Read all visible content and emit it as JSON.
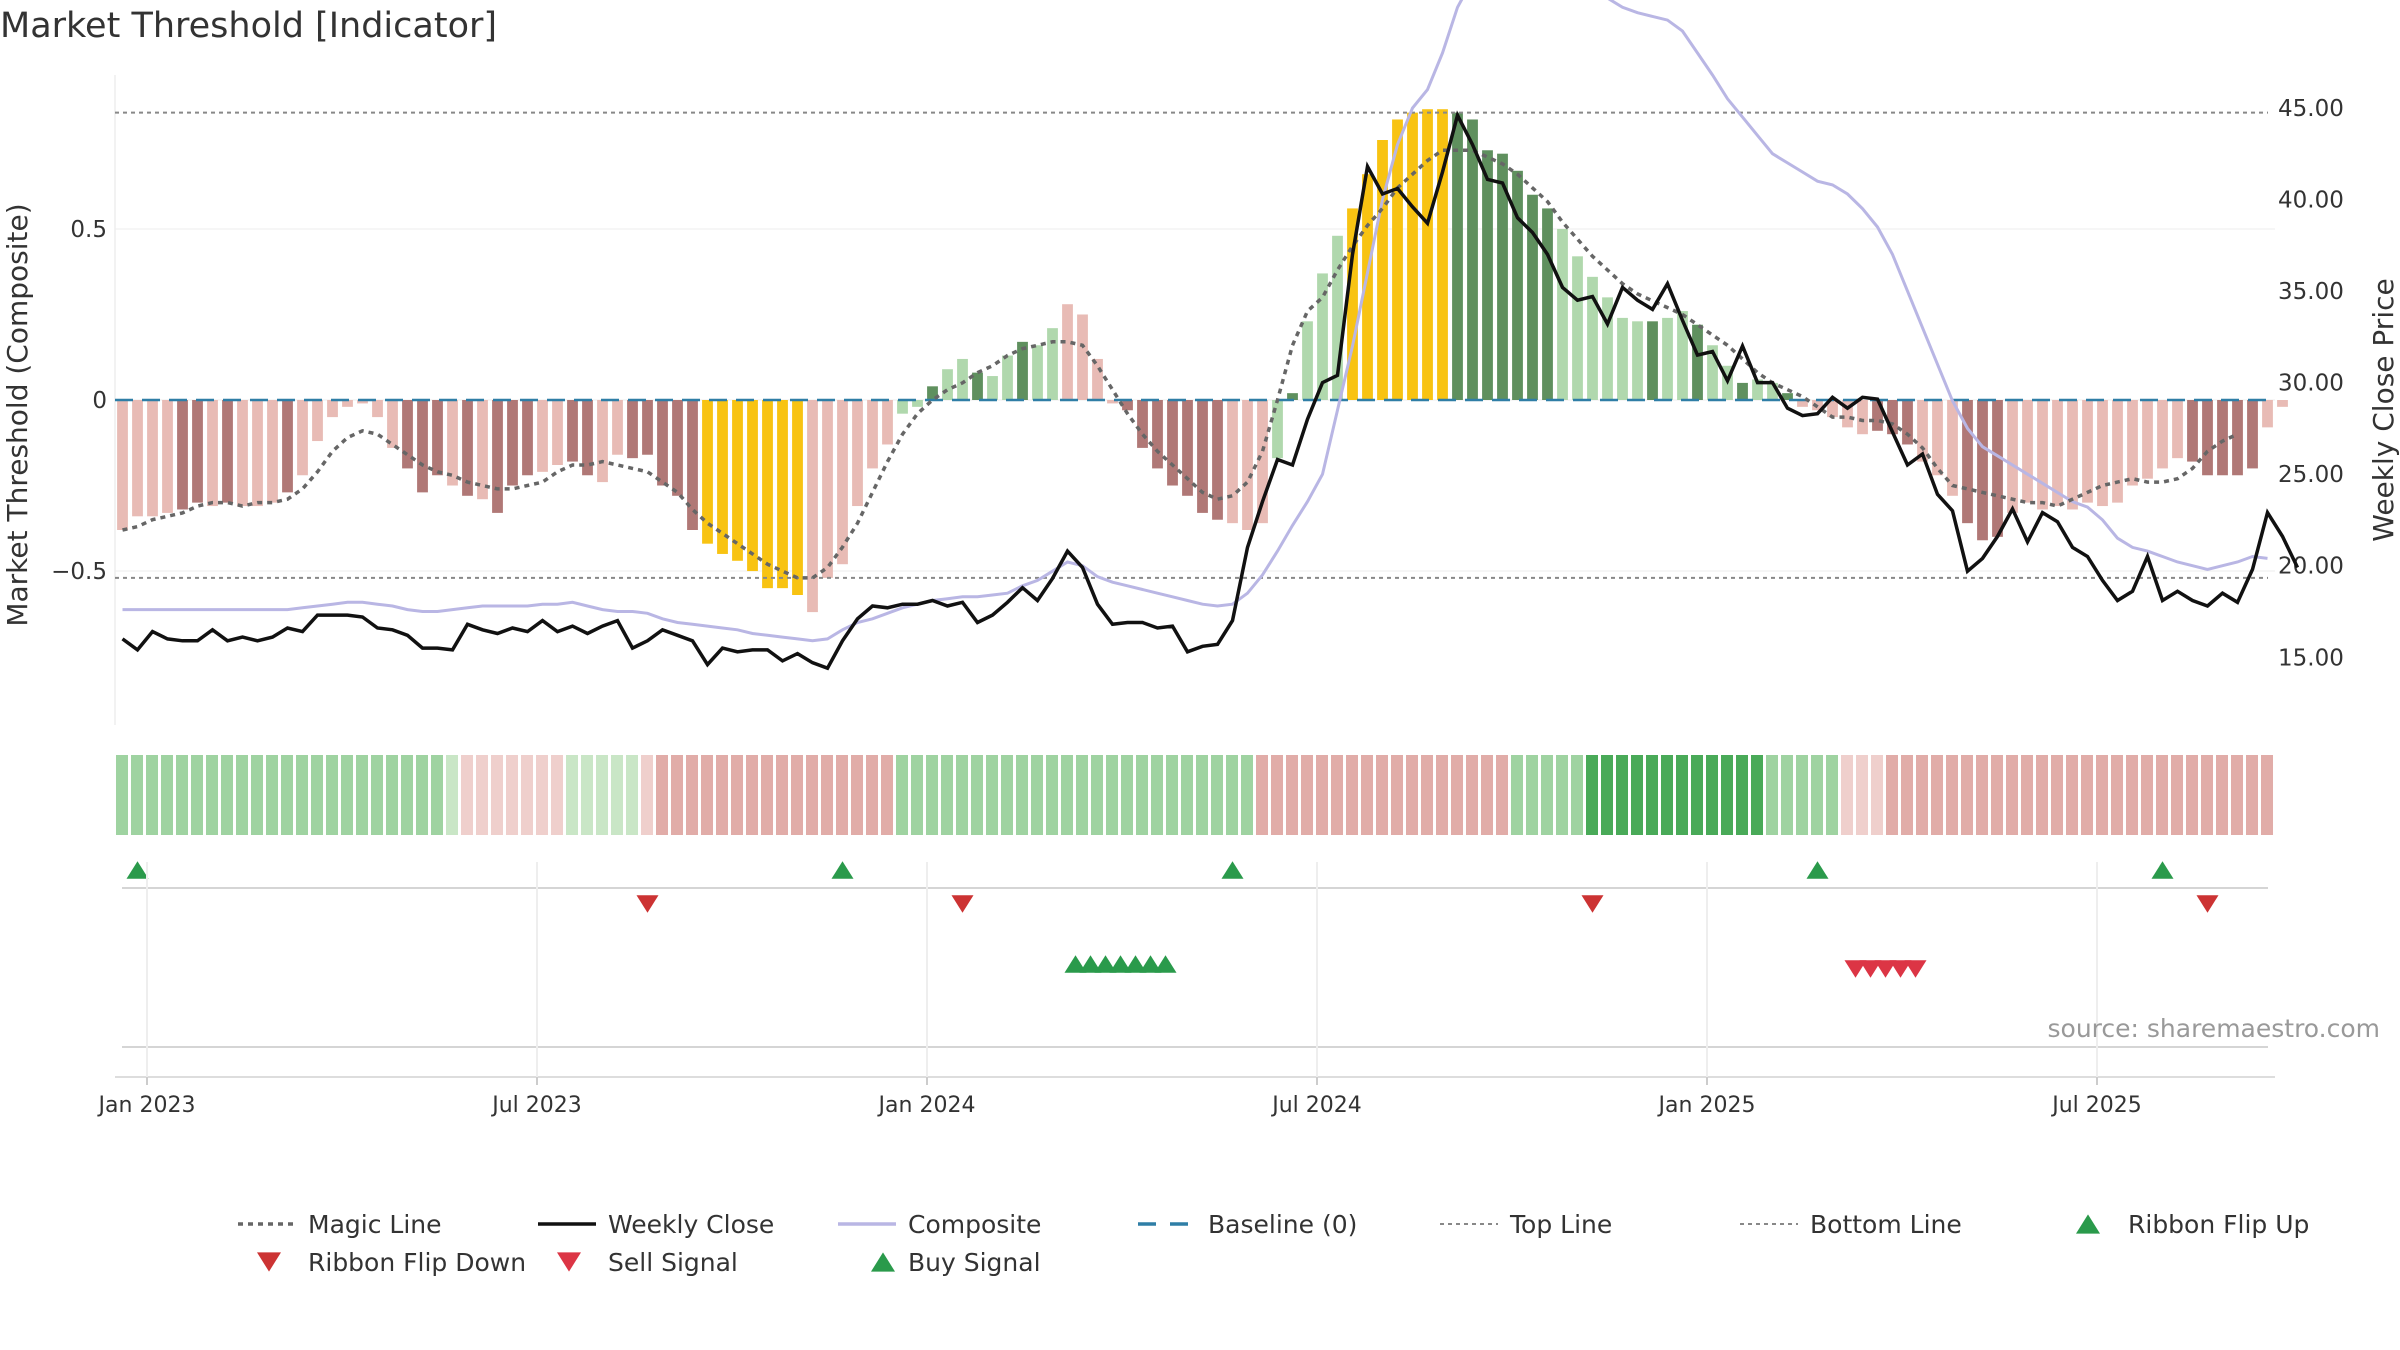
{
  "chart_data": {
    "type": "bar",
    "title": "Market Threshold [Indicator]",
    "ylabel": "Market Threshold (Composite)",
    "y2label": "Weekly Close Price",
    "ylim": [
      -0.95,
      0.95
    ],
    "y2lim": [
      11.3,
      46.8
    ],
    "yticks": [
      {
        "v": 0.5,
        "label": "0.5"
      },
      {
        "v": 0,
        "label": "0"
      },
      {
        "v": -0.5,
        "label": "−0.5"
      }
    ],
    "y2ticks": [
      "45.00",
      "40.00",
      "35.00",
      "30.00",
      "25.00",
      "20.00",
      "15.00"
    ],
    "xticks": [
      {
        "i": 2,
        "label": "Jan 2023"
      },
      {
        "i": 28,
        "label": "Jul 2023"
      },
      {
        "i": 54,
        "label": "Jan 2024"
      },
      {
        "i": 80,
        "label": "Jul 2024"
      },
      {
        "i": 106,
        "label": "Jan 2025"
      },
      {
        "i": 132,
        "label": "Jul 2025"
      }
    ],
    "weeks": 144,
    "composite_bars": [
      -0.38,
      -0.34,
      -0.34,
      -0.33,
      -0.32,
      -0.3,
      -0.31,
      -0.3,
      -0.31,
      -0.31,
      -0.3,
      -0.27,
      -0.22,
      -0.12,
      -0.05,
      -0.02,
      -0.01,
      -0.05,
      -0.14,
      -0.2,
      -0.27,
      -0.22,
      -0.25,
      -0.28,
      -0.29,
      -0.33,
      -0.25,
      -0.22,
      -0.21,
      -0.19,
      -0.18,
      -0.22,
      -0.24,
      -0.16,
      -0.17,
      -0.16,
      -0.25,
      -0.28,
      -0.38,
      -0.42,
      -0.45,
      -0.47,
      -0.5,
      -0.55,
      -0.55,
      -0.57,
      -0.62,
      -0.52,
      -0.48,
      -0.31,
      -0.2,
      -0.13,
      -0.04,
      -0.02,
      0.04,
      0.09,
      0.12,
      0.08,
      0.07,
      0.13,
      0.17,
      0.16,
      0.21,
      0.28,
      0.25,
      0.12,
      -0.01,
      -0.03,
      -0.14,
      -0.2,
      -0.25,
      -0.28,
      -0.33,
      -0.35,
      -0.36,
      -0.38,
      -0.36,
      -0.17,
      0.02,
      0.23,
      0.37,
      0.48,
      0.56,
      0.66,
      0.76,
      0.82,
      0.84,
      0.85,
      0.85,
      0.84,
      0.82,
      0.73,
      0.72,
      0.67,
      0.6,
      0.56,
      0.5,
      0.42,
      0.36,
      0.3,
      0.24,
      0.23,
      0.23,
      0.24,
      0.26,
      0.22,
      0.16,
      0.1,
      0.05,
      0.06,
      0.05,
      0.02,
      -0.02,
      -0.03,
      -0.05,
      -0.08,
      -0.1,
      -0.09,
      -0.1,
      -0.13,
      -0.18,
      -0.22,
      -0.28,
      -0.36,
      -0.41,
      -0.4,
      -0.33,
      -0.3,
      -0.32,
      -0.31,
      -0.32,
      -0.3,
      -0.31,
      -0.3,
      -0.25,
      -0.23,
      -0.2,
      -0.17,
      -0.18,
      -0.22,
      -0.22,
      -0.22,
      -0.2,
      -0.08,
      -0.02
    ],
    "bar_states": "ppppddpdpppdpppppppdddpdpdddppddppdddddyyyyyyyppppppgggggggggggppppdddddddpppgggggyyyyyyygggggggggggggggggggggggpppppdddpppdddppppppppppppdddddpppppppp",
    "bar_colors": {
      "d": "#b07876",
      "p": "#e8bbb5",
      "g_dark": "#5f905e",
      "g_light": "#b0d8ad",
      "y": "#f8c312"
    },
    "weekly_close": [
      16.0,
      15.4,
      16.4,
      16.0,
      15.9,
      15.9,
      16.5,
      15.9,
      16.1,
      15.9,
      16.1,
      16.6,
      16.4,
      17.3,
      17.3,
      17.3,
      17.2,
      16.6,
      16.5,
      16.2,
      15.5,
      15.5,
      15.4,
      16.8,
      16.5,
      16.3,
      16.6,
      16.4,
      17.0,
      16.4,
      16.7,
      16.3,
      16.7,
      17.0,
      15.5,
      15.9,
      16.5,
      16.2,
      15.9,
      14.6,
      15.5,
      15.3,
      15.4,
      15.4,
      14.8,
      15.2,
      14.7,
      14.4,
      15.9,
      17.1,
      17.8,
      17.7,
      17.9,
      17.9,
      18.1,
      17.8,
      18.0,
      16.9,
      17.3,
      18.0,
      18.8,
      18.1,
      19.3,
      20.8,
      19.9,
      17.9,
      16.8,
      16.9,
      16.9,
      16.6,
      16.7,
      15.3,
      15.6,
      15.7,
      17.0,
      21.0,
      23.5,
      25.8,
      25.5,
      28.0,
      30.0,
      30.4,
      37.0,
      41.8,
      40.3,
      40.6,
      39.6,
      38.7,
      41.5,
      44.6,
      43.0,
      41.1,
      40.9,
      39.0,
      38.2,
      37.0,
      35.2,
      34.5,
      34.7,
      33.2,
      35.2,
      34.5,
      34.0,
      35.4,
      33.4,
      31.5,
      31.7,
      30.1,
      32.0,
      30.0,
      30.0,
      28.6,
      28.2,
      28.3,
      29.2,
      28.6,
      29.2,
      29.1,
      27.3,
      25.5,
      26.1,
      23.9,
      23.0,
      19.7,
      20.4,
      21.6,
      23.1,
      21.3,
      22.9,
      22.4,
      21.0,
      20.5,
      19.2,
      18.1,
      18.6,
      20.5,
      18.1,
      18.6,
      18.1,
      17.8,
      18.5,
      18.0,
      19.8,
      22.9,
      21.6,
      19.9
    ],
    "composite_line": [
      17.6,
      17.6,
      17.6,
      17.6,
      17.6,
      17.6,
      17.6,
      17.6,
      17.6,
      17.6,
      17.6,
      17.6,
      17.7,
      17.8,
      17.9,
      18.0,
      18.0,
      17.9,
      17.8,
      17.6,
      17.5,
      17.5,
      17.6,
      17.7,
      17.8,
      17.8,
      17.8,
      17.8,
      17.9,
      17.9,
      18.0,
      17.8,
      17.6,
      17.5,
      17.5,
      17.4,
      17.1,
      16.9,
      16.8,
      16.7,
      16.6,
      16.5,
      16.3,
      16.2,
      16.1,
      16.0,
      15.9,
      16.0,
      16.5,
      16.9,
      17.1,
      17.4,
      17.7,
      17.9,
      18.1,
      18.2,
      18.3,
      18.3,
      18.4,
      18.5,
      18.9,
      19.2,
      19.7,
      20.2,
      20.0,
      19.4,
      19.1,
      18.9,
      18.7,
      18.5,
      18.3,
      18.1,
      17.9,
      17.8,
      17.9,
      18.5,
      19.5,
      20.8,
      22.2,
      23.5,
      25.0,
      28.5,
      32.0,
      36.0,
      40.0,
      43.0,
      45.0,
      46.0,
      48.0,
      50.5,
      52.0,
      54.0,
      55.0,
      55.5,
      55.3,
      54.8,
      54.0,
      53.0,
      52.0,
      51.0,
      50.5,
      50.2,
      50.0,
      49.8,
      49.2,
      48.0,
      46.8,
      45.5,
      44.5,
      43.5,
      42.5,
      42.0,
      41.5,
      41.0,
      40.8,
      40.3,
      39.5,
      38.5,
      37.0,
      35.0,
      33.0,
      31.0,
      29.0,
      27.5,
      26.5,
      26.0,
      25.5,
      25.0,
      24.5,
      24.0,
      23.5,
      23.2,
      22.5,
      21.5,
      21.0,
      20.8,
      20.5,
      20.2,
      20.0,
      19.8,
      20.0,
      20.2,
      20.5,
      20.4
    ],
    "magic_line": [
      -0.38,
      -0.37,
      -0.35,
      -0.34,
      -0.33,
      -0.31,
      -0.3,
      -0.3,
      -0.31,
      -0.3,
      -0.3,
      -0.29,
      -0.26,
      -0.21,
      -0.15,
      -0.11,
      -0.09,
      -0.1,
      -0.13,
      -0.16,
      -0.19,
      -0.21,
      -0.22,
      -0.24,
      -0.25,
      -0.26,
      -0.26,
      -0.25,
      -0.24,
      -0.21,
      -0.19,
      -0.19,
      -0.18,
      -0.19,
      -0.2,
      -0.21,
      -0.24,
      -0.27,
      -0.32,
      -0.36,
      -0.39,
      -0.42,
      -0.45,
      -0.48,
      -0.5,
      -0.52,
      -0.52,
      -0.49,
      -0.43,
      -0.36,
      -0.27,
      -0.18,
      -0.1,
      -0.04,
      0.0,
      0.03,
      0.05,
      0.08,
      0.1,
      0.13,
      0.15,
      0.16,
      0.17,
      0.17,
      0.16,
      0.1,
      0.03,
      -0.04,
      -0.1,
      -0.15,
      -0.19,
      -0.23,
      -0.27,
      -0.29,
      -0.28,
      -0.24,
      -0.15,
      0.0,
      0.16,
      0.26,
      0.3,
      0.38,
      0.45,
      0.51,
      0.56,
      0.62,
      0.66,
      0.7,
      0.73,
      0.73,
      0.73,
      0.71,
      0.69,
      0.66,
      0.62,
      0.58,
      0.52,
      0.47,
      0.42,
      0.38,
      0.34,
      0.31,
      0.29,
      0.27,
      0.25,
      0.22,
      0.19,
      0.16,
      0.12,
      0.08,
      0.05,
      0.03,
      0.01,
      -0.02,
      -0.05,
      -0.05,
      -0.06,
      -0.06,
      -0.07,
      -0.1,
      -0.14,
      -0.2,
      -0.25,
      -0.26,
      -0.27,
      -0.28,
      -0.29,
      -0.3,
      -0.3,
      -0.31,
      -0.29,
      -0.27,
      -0.25,
      -0.24,
      -0.23,
      -0.24,
      -0.24,
      -0.23,
      -0.2,
      -0.15,
      -0.12,
      -0.1
    ],
    "top_line": 0.84,
    "bottom_line": -0.52,
    "ribbon_states": "g2g2g2g2g2g2g2g2g2g2g2g2g2g2g2g2g2g2g2g2g2g2g1p1p1p1p1p1p1p1g1g1g1g1g1p1p2p2p2p2p2p2p2p2p2p2p2p2p2p2p2p2g2g2g2g2g2g2g2g2g2g2g2g2g2g2g2g2g2g2g2g2g2g2g2g2p2p2p2p2p2p2p2p2p2p2p2p2p2p2p2p2p2g2g2g2g2g2g3g3g3g3g3g3g3g3g3g3g3g3g2g2g2g2g2p1p1p1p2p2p2p2p2p2p2p2p2p2p2p2p2p2p2p2p2p2p2p2p2p2p2p2p2p2p2p1p1p1p1p1p1p1p1p1p1p1g1g1g1g1g1g1g1g1g1g1g1g1",
    "ribbon_colors": {
      "g1": "#c9e6c6",
      "g2": "#9fd3a1",
      "g3": "#49aa58",
      "p1": "#efcfcc",
      "p2": "#e1aca8"
    },
    "ribbon_flip_up": [
      1,
      48,
      74,
      113,
      136
    ],
    "ribbon_flip_down": [
      35,
      56,
      98,
      139
    ],
    "buy_signals": [
      63,
      64,
      65,
      66,
      67,
      68,
      69
    ],
    "sell_signals": [
      115,
      116,
      117,
      118,
      119
    ],
    "legend": [
      {
        "label": "Magic Line",
        "kind": "dotted",
        "color": "#666666"
      },
      {
        "label": "Weekly Close",
        "kind": "solid",
        "color": "#111111"
      },
      {
        "label": "Composite",
        "kind": "solid",
        "color": "#b9b6e4"
      },
      {
        "label": "Baseline (0)",
        "kind": "dashed",
        "color": "#2f7ea6"
      },
      {
        "label": "Top Line",
        "kind": "dotted-thin",
        "color": "#888888"
      },
      {
        "label": "Bottom Line",
        "kind": "dotted-thin",
        "color": "#888888"
      },
      {
        "label": "Ribbon Flip Up",
        "kind": "tri-up",
        "color": "#2a9a4b"
      },
      {
        "label": "Ribbon Flip Down",
        "kind": "tri-down",
        "color": "#cc3333"
      },
      {
        "label": "Sell Signal",
        "kind": "tri-down",
        "color": "#dc3545"
      },
      {
        "label": "Buy Signal",
        "kind": "tri-up",
        "color": "#2a9a4b"
      }
    ],
    "source": "source: sharemaestro.com"
  }
}
